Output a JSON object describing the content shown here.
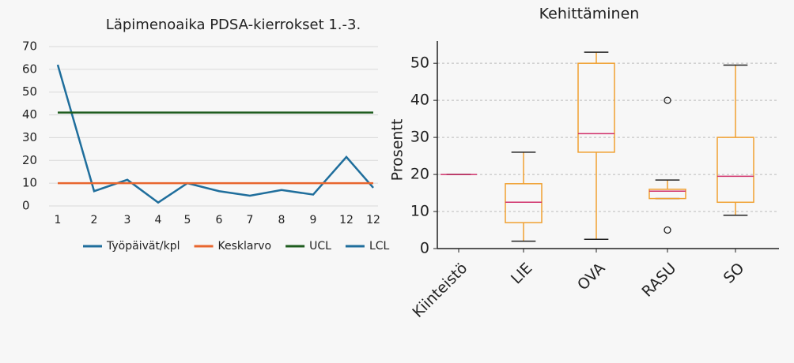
{
  "chart_data": [
    {
      "type": "line",
      "title": "Läpimenoaika PDSA-kierrokset 1.-3.",
      "categories": [
        "1",
        "2",
        "3",
        "4",
        "5",
        "6",
        "7",
        "8",
        "9",
        "12",
        "12"
      ],
      "series": [
        {
          "name": "Työpäivät/kpl",
          "color": "#1f6e9c",
          "values": [
            62,
            6.5,
            11.5,
            1.5,
            10,
            6.5,
            4.5,
            7,
            5,
            21.5,
            8
          ]
        },
        {
          "name": "Kesklarvo",
          "color": "#e8662e",
          "values": [
            10,
            10,
            10,
            10,
            10,
            10,
            10,
            10,
            10,
            10,
            10
          ]
        },
        {
          "name": "UCL",
          "color": "#1e5c1e",
          "values": [
            41,
            41,
            41,
            41,
            41,
            41,
            41,
            41,
            41,
            41,
            41
          ]
        },
        {
          "name": "LCL",
          "color": "#1f6e9c",
          "values": [
            null,
            null,
            null,
            null,
            null,
            null,
            null,
            null,
            null,
            null,
            null
          ]
        }
      ],
      "ylim": [
        0,
        70
      ],
      "yticks": [
        0,
        10,
        20,
        30,
        40,
        50,
        60,
        70
      ],
      "grid": true,
      "legend": "bottom"
    },
    {
      "type": "box",
      "title": "Kehittäminen",
      "y_label": "Prosentt",
      "categories": [
        "Kiinteistö",
        "LIE",
        "OVA",
        "RASU",
        "SO"
      ],
      "boxes": [
        {
          "min": 20,
          "q1": 20,
          "median": 20,
          "q3": 20,
          "max": 20,
          "outliers": []
        },
        {
          "min": 2,
          "q1": 7,
          "median": 12.5,
          "q3": 17.5,
          "max": 26,
          "outliers": []
        },
        {
          "min": 2.5,
          "q1": 26,
          "median": 31,
          "q3": 50,
          "max": 53,
          "outliers": []
        },
        {
          "min": 13.5,
          "q1": 13.5,
          "median": 15.5,
          "q3": 16,
          "max": 18.5,
          "outliers": [
            40,
            5
          ]
        },
        {
          "min": 9,
          "q1": 12.5,
          "median": 19.5,
          "q3": 30,
          "max": 49.5,
          "outliers": []
        }
      ],
      "box_color": "#f0a030",
      "median_color": "#d0306a",
      "ylim": [
        0,
        56
      ],
      "yticks": [
        0,
        10,
        20,
        30,
        40,
        50
      ],
      "grid": true
    }
  ]
}
